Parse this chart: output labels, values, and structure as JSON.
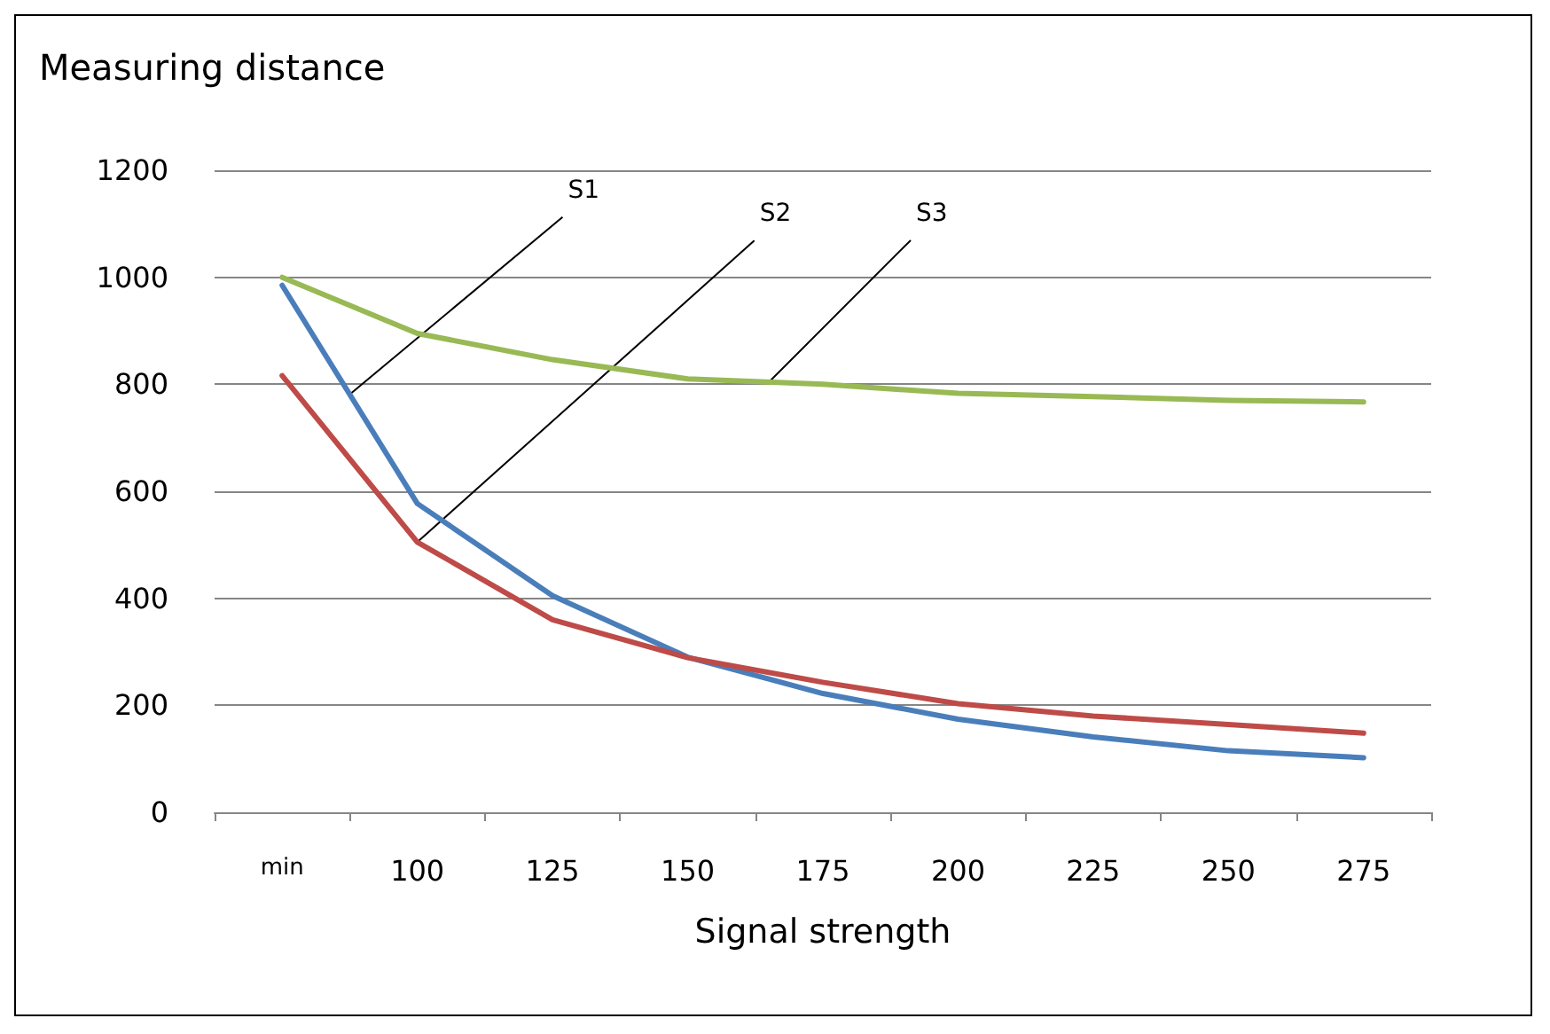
{
  "chart_data": {
    "type": "line",
    "title": "Measuring distance",
    "xlabel": "Signal strength",
    "categories": [
      "min",
      "100",
      "125",
      "150",
      "175",
      "200",
      "225",
      "250",
      "275"
    ],
    "series": [
      {
        "name": "S1",
        "color": "#4a7ebb",
        "values": [
          985,
          577,
          405,
          290,
          222,
          174,
          141,
          115,
          102
        ]
      },
      {
        "name": "S2",
        "color": "#be4b48",
        "values": [
          816,
          505,
          360,
          289,
          243,
          203,
          180,
          164,
          148
        ]
      },
      {
        "name": "S3",
        "color": "#98b954",
        "values": [
          1000,
          895,
          846,
          810,
          800,
          783,
          777,
          770,
          767
        ]
      }
    ],
    "ylim": [
      0,
      1200
    ],
    "yticks": [
      0,
      200,
      400,
      600,
      800,
      1000,
      1200
    ],
    "grid": "y",
    "legend": false,
    "marker": "none",
    "line_style": "solid"
  }
}
